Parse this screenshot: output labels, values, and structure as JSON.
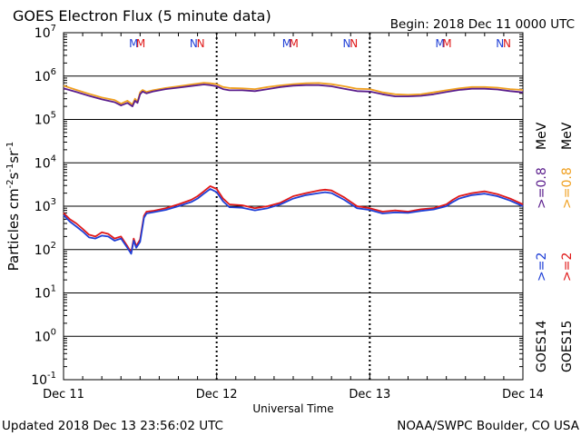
{
  "header": {
    "title": "GOES Electron Flux (5 minute data)",
    "begin": "Begin: 2018 Dec 11 0000 UTC"
  },
  "footer": {
    "updated": "Updated 2018 Dec 13 23:56:02 UTC",
    "credit": "NOAA/SWPC Boulder, CO USA"
  },
  "colors": {
    "goes14_ge2": "#1f3fd6",
    "goes15_ge2": "#e01818",
    "goes14_ge08": "#5a1d8c",
    "goes15_ge08": "#f0a020",
    "threshold": "#000000"
  },
  "legend": {
    "goes14": "GOES14",
    "goes15": "GOES15",
    "ge2_a": ">=2",
    "ge2_b": ">=2",
    "ge08_a": ">=0.8",
    "ge08_b": ">=0.8",
    "unit_a": "MeV",
    "unit_b": "MeV"
  },
  "chart_data": {
    "type": "line",
    "title": "GOES Electron Flux (5 minute data)",
    "xlabel": "Universal Time",
    "ylabel": "Particles cm-2 s-1 sr-1",
    "ylabel_parts": {
      "base": "Particles cm",
      "e1": "-2",
      "s": "s",
      "e2": "-1",
      "sr": "sr",
      "e3": "-1"
    },
    "y_scale": "log",
    "ylim": [
      0.1,
      10000000
    ],
    "xlim_hours": [
      0,
      72
    ],
    "x_ticks": [
      {
        "hour": 0,
        "label": "Dec 11"
      },
      {
        "hour": 24,
        "label": "Dec 12"
      },
      {
        "hour": 48,
        "label": "Dec 13"
      },
      {
        "hour": 72,
        "label": "Dec 14"
      }
    ],
    "y_ticks": [
      {
        "exp": -1,
        "base": "10",
        "sup": "-1"
      },
      {
        "exp": 0,
        "base": "10",
        "sup": "0"
      },
      {
        "exp": 1,
        "base": "10",
        "sup": "1"
      },
      {
        "exp": 2,
        "base": "10",
        "sup": "2"
      },
      {
        "exp": 3,
        "base": "10",
        "sup": "3"
      },
      {
        "exp": 4,
        "base": "10",
        "sup": "4"
      },
      {
        "exp": 5,
        "base": "10",
        "sup": "5"
      },
      {
        "exp": 6,
        "base": "10",
        "sup": "6"
      },
      {
        "exp": 7,
        "base": "10",
        "sup": "7"
      }
    ],
    "threshold": {
      "value": 1000,
      "style": "dashed"
    },
    "markers": [
      {
        "hour": 11.0,
        "label": "M",
        "color": "#1f3fd6"
      },
      {
        "hour": 12.1,
        "label": "M",
        "color": "#e01818"
      },
      {
        "hour": 20.4,
        "label": "N",
        "color": "#1f3fd6"
      },
      {
        "hour": 21.5,
        "label": "N",
        "color": "#e01818"
      },
      {
        "hour": 35.0,
        "label": "M",
        "color": "#1f3fd6"
      },
      {
        "hour": 36.1,
        "label": "M",
        "color": "#e01818"
      },
      {
        "hour": 44.4,
        "label": "N",
        "color": "#1f3fd6"
      },
      {
        "hour": 45.5,
        "label": "N",
        "color": "#e01818"
      },
      {
        "hour": 59.0,
        "label": "M",
        "color": "#1f3fd6"
      },
      {
        "hour": 60.1,
        "label": "M",
        "color": "#e01818"
      },
      {
        "hour": 68.4,
        "label": "N",
        "color": "#1f3fd6"
      },
      {
        "hour": 69.5,
        "label": "N",
        "color": "#e01818"
      }
    ],
    "series": [
      {
        "name": "GOES15 >=0.8 MeV",
        "color": "#f0a020",
        "x": [
          0,
          2,
          4,
          6,
          8,
          9,
          10,
          10.8,
          11.2,
          11.6,
          12,
          12.4,
          13,
          14,
          16,
          18,
          20,
          22,
          23,
          24,
          25,
          26,
          28,
          30,
          32,
          34,
          36,
          38,
          40,
          42,
          44,
          46,
          48,
          49,
          50,
          52,
          54,
          56,
          58,
          60,
          62,
          64,
          66,
          68,
          70,
          72
        ],
        "y": [
          600000,
          480000,
          390000,
          320000,
          280000,
          230000,
          270000,
          220000,
          300000,
          260000,
          420000,
          480000,
          430000,
          470000,
          530000,
          580000,
          640000,
          700000,
          680000,
          650000,
          560000,
          530000,
          520000,
          500000,
          560000,
          610000,
          650000,
          680000,
          690000,
          650000,
          580000,
          510000,
          500000,
          460000,
          420000,
          380000,
          370000,
          380000,
          420000,
          470000,
          520000,
          560000,
          560000,
          540000,
          500000,
          480000
        ]
      },
      {
        "name": "GOES14 >=0.8 MeV",
        "color": "#5a1d8c",
        "x": [
          0,
          2,
          4,
          6,
          8,
          9,
          10,
          10.8,
          11.2,
          11.6,
          12,
          12.4,
          13,
          14,
          16,
          18,
          20,
          22,
          23,
          24,
          25,
          26,
          28,
          30,
          32,
          34,
          36,
          38,
          40,
          42,
          44,
          46,
          48,
          49,
          50,
          52,
          54,
          56,
          58,
          60,
          62,
          64,
          66,
          68,
          70,
          72
        ],
        "y": [
          520000,
          430000,
          350000,
          290000,
          250000,
          210000,
          240000,
          200000,
          270000,
          240000,
          380000,
          440000,
          400000,
          440000,
          500000,
          540000,
          590000,
          640000,
          620000,
          580000,
          500000,
          470000,
          470000,
          450000,
          500000,
          560000,
          600000,
          620000,
          620000,
          580000,
          510000,
          450000,
          440000,
          410000,
          380000,
          340000,
          340000,
          350000,
          380000,
          430000,
          480000,
          510000,
          510000,
          490000,
          450000,
          420000
        ]
      },
      {
        "name": "GOES15 >=2 MeV",
        "color": "#e01818",
        "x": [
          0,
          1,
          2,
          3,
          4,
          5,
          6,
          7,
          8,
          9,
          10,
          10.6,
          11,
          11.4,
          12,
          12.6,
          13,
          14,
          16,
          18,
          20,
          21,
          22,
          23,
          24,
          25,
          26,
          28,
          30,
          32,
          34,
          36,
          38,
          40,
          41,
          42,
          44,
          46,
          48,
          50,
          52,
          54,
          56,
          58,
          60,
          61,
          62,
          64,
          66,
          68,
          70,
          72
        ],
        "y": [
          700,
          500,
          400,
          300,
          220,
          200,
          250,
          230,
          180,
          200,
          120,
          85,
          180,
          120,
          170,
          600,
          750,
          780,
          900,
          1100,
          1400,
          1700,
          2200,
          2900,
          2500,
          1500,
          1100,
          1050,
          900,
          1000,
          1200,
          1700,
          2000,
          2300,
          2400,
          2300,
          1600,
          1000,
          900,
          750,
          800,
          750,
          850,
          900,
          1100,
          1400,
          1700,
          2000,
          2200,
          1900,
          1500,
          1100
        ]
      },
      {
        "name": "GOES14 >=2 MeV",
        "color": "#1f3fd6",
        "x": [
          0,
          1,
          2,
          3,
          4,
          5,
          6,
          7,
          8,
          9,
          10,
          10.6,
          11,
          11.4,
          12,
          12.6,
          13,
          14,
          16,
          18,
          20,
          21,
          22,
          23,
          24,
          25,
          26,
          28,
          30,
          32,
          34,
          36,
          38,
          40,
          41,
          42,
          44,
          46,
          48,
          50,
          52,
          54,
          56,
          58,
          60,
          61,
          62,
          64,
          66,
          68,
          70,
          72
        ],
        "y": [
          620,
          440,
          340,
          260,
          190,
          180,
          210,
          200,
          160,
          180,
          110,
          80,
          160,
          110,
          150,
          540,
          680,
          720,
          820,
          1000,
          1250,
          1500,
          1950,
          2500,
          2100,
          1300,
          950,
          920,
          800,
          900,
          1100,
          1500,
          1800,
          2000,
          2100,
          2000,
          1400,
          900,
          820,
          680,
          720,
          700,
          780,
          840,
          1000,
          1250,
          1500,
          1800,
          1950,
          1700,
          1350,
          1000
        ]
      }
    ]
  }
}
